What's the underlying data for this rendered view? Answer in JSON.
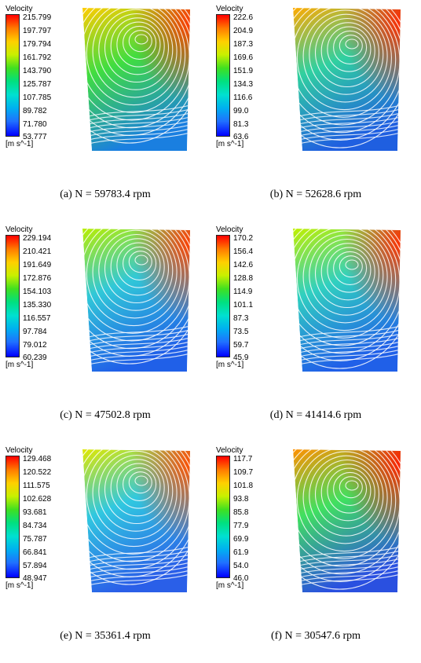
{
  "figure": {
    "panels": [
      {
        "caption": "(a) N = 59783.4 rpm",
        "legend_title": "Velocity",
        "unit": "[m s^-1]",
        "ticks": [
          "215.799",
          "197.797",
          "179.794",
          "161.792",
          "143.790",
          "125.787",
          "107.785",
          "89.782",
          "71.780",
          "53.777"
        ],
        "colors": {
          "top": "#ffcc00",
          "mid": "#40dd40",
          "bottom": "#1a7fe0",
          "hot": "#ff3a00"
        }
      },
      {
        "caption": "(b) N = 52628.6 rpm",
        "legend_title": "Velocity",
        "unit": "[m s^-1]",
        "ticks": [
          "222.6",
          "204.9",
          "187.3",
          "169.6",
          "151.9",
          "134.3",
          "116.6",
          "99.0",
          "81.3",
          "63.6"
        ],
        "colors": {
          "top": "#ffaa00",
          "mid": "#30d0a0",
          "bottom": "#1f5fe0",
          "hot": "#ff2a00"
        }
      },
      {
        "caption": "(c) N = 47502.8 rpm",
        "legend_title": "Velocity",
        "unit": "[m s^-1]",
        "ticks": [
          "229.194",
          "210.421",
          "191.649",
          "172.876",
          "154.103",
          "135.330",
          "116.557",
          "97.784",
          "79.012",
          "60.239"
        ],
        "colors": {
          "top": "#b8ee00",
          "mid": "#30c8d8",
          "bottom": "#2060e8",
          "hot": "#ff4000"
        }
      },
      {
        "caption": "(d) N = 41414.6 rpm",
        "legend_title": "Velocity",
        "unit": "[m s^-1]",
        "ticks": [
          "170.2",
          "156.4",
          "142.6",
          "128.8",
          "114.9",
          "101.1",
          "87.3",
          "73.5",
          "59.7",
          "45.9"
        ],
        "colors": {
          "top": "#c0f000",
          "mid": "#30d0c0",
          "bottom": "#2060e8",
          "hot": "#ff3000"
        }
      },
      {
        "caption": "(e) N = 35361.4 rpm",
        "legend_title": "Velocity",
        "unit": "[m s^-1]",
        "ticks": [
          "129.468",
          "120.522",
          "111.575",
          "102.628",
          "93.681",
          "84.734",
          "75.787",
          "66.841",
          "57.894",
          "48.947"
        ],
        "colors": {
          "top": "#e0e800",
          "mid": "#30c8e0",
          "bottom": "#2a5fe8",
          "hot": "#ff5000"
        }
      },
      {
        "caption": "(f) N = 30547.6 rpm",
        "legend_title": "Velocity",
        "unit": "[m s^-1]",
        "ticks": [
          "117.7",
          "109.7",
          "101.8",
          "93.8",
          "85.8",
          "77.9",
          "69.9",
          "61.9",
          "54.0",
          "46.0"
        ],
        "colors": {
          "top": "#ff9000",
          "mid": "#40e060",
          "bottom": "#2a50e0",
          "hot": "#ff2000"
        }
      }
    ]
  }
}
